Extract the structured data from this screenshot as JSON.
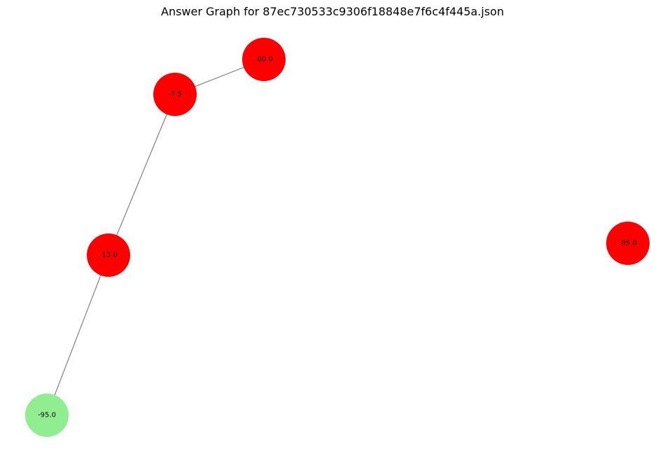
{
  "title": "Answer Graph for 87ec730533c9306f18848e7f6c4f445a.json",
  "colors": {
    "red": "#ff0000",
    "green": "#90ee90",
    "edge": "#808080"
  },
  "nodes": [
    {
      "id": "n1",
      "label": "-80.0",
      "color": "red"
    },
    {
      "id": "n2",
      "label": "-7.5",
      "color": "red"
    },
    {
      "id": "n3",
      "label": "-13.0",
      "color": "red"
    },
    {
      "id": "n4",
      "label": "-95.0",
      "color": "green"
    },
    {
      "id": "n5",
      "label": "-95.0",
      "color": "red"
    }
  ],
  "edges": [
    {
      "from": "n1",
      "to": "n2"
    },
    {
      "from": "n2",
      "to": "n3"
    },
    {
      "from": "n3",
      "to": "n4"
    }
  ]
}
